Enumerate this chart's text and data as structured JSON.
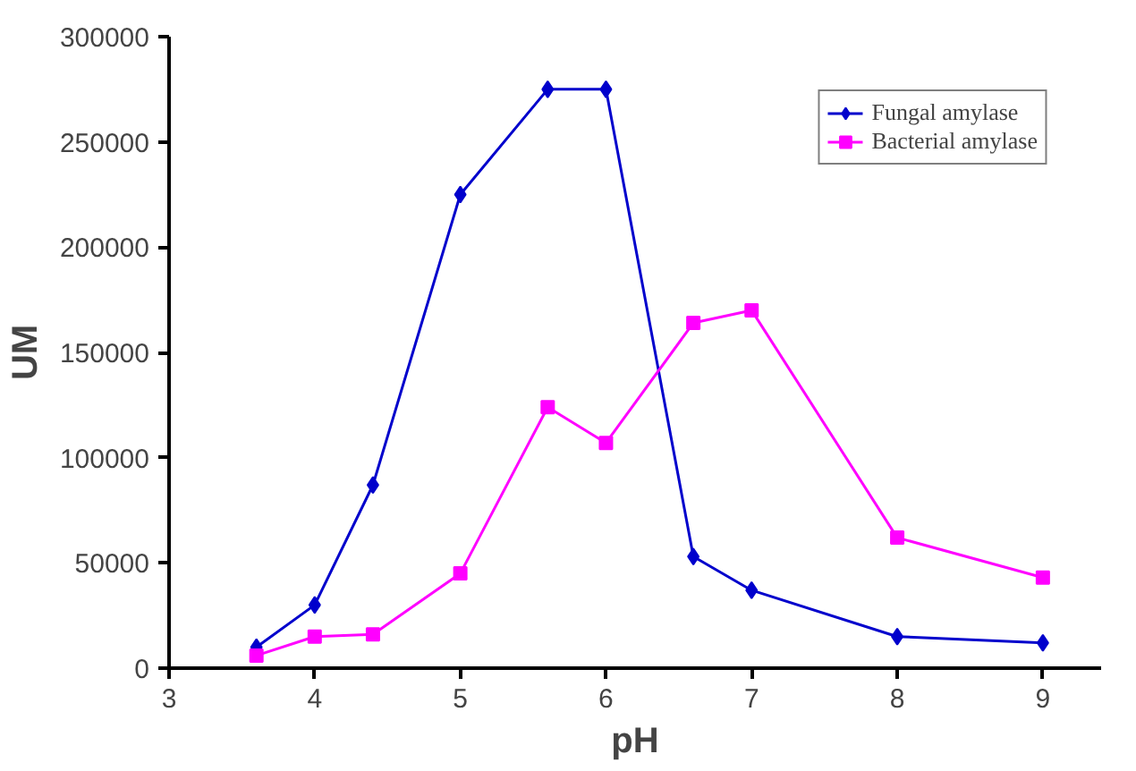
{
  "chart_data": {
    "type": "line",
    "xlabel": "pH",
    "ylabel": "UM",
    "xlim": [
      3,
      9.4
    ],
    "ylim": [
      0,
      300000
    ],
    "xticks": [
      3,
      4,
      5,
      6,
      7,
      8,
      9
    ],
    "yticks": [
      0,
      50000,
      100000,
      150000,
      200000,
      250000,
      300000
    ],
    "grid": false,
    "legend": "top right",
    "line_style": "solid",
    "series": [
      {
        "name": "Fungal amylase",
        "color": "#0000cc",
        "marker": "diamond",
        "x": [
          3.6,
          4,
          4.4,
          5,
          5.6,
          6,
          6.6,
          7,
          8,
          9
        ],
        "values": [
          10000,
          30000,
          87000,
          225000,
          275000,
          275000,
          53000,
          37000,
          15000,
          12000
        ]
      },
      {
        "name": "Bacterial amylase",
        "color": "#ff00ff",
        "marker": "square",
        "x": [
          3.6,
          4,
          4.4,
          5,
          5.6,
          6,
          6.6,
          7,
          8,
          9
        ],
        "values": [
          6000,
          15000,
          16000,
          45000,
          124000,
          107000,
          164000,
          170000,
          62000,
          43000
        ]
      }
    ]
  }
}
